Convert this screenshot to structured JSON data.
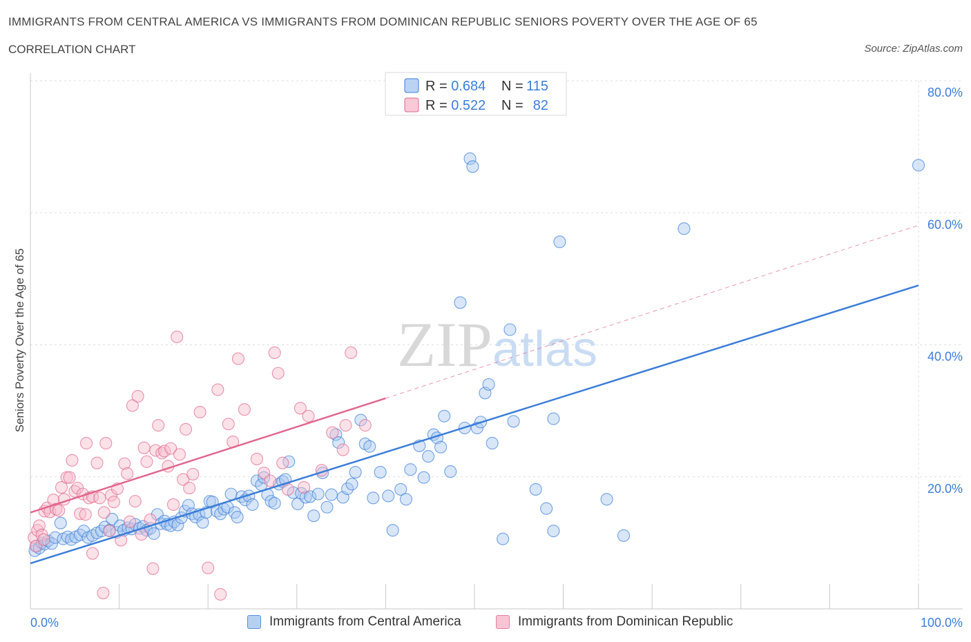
{
  "header": {
    "title": "IMMIGRANTS FROM CENTRAL AMERICA VS IMMIGRANTS FROM DOMINICAN REPUBLIC SENIORS POVERTY OVER THE AGE OF 65",
    "subtitle": "CORRELATION CHART",
    "source": "Source: ZipAtlas.com"
  },
  "watermark": {
    "zip": "ZIP",
    "atlas": "atlas"
  },
  "chart_data": {
    "type": "scatter",
    "xlabel": "",
    "ylabel": "Seniors Poverty Over the Age of 65",
    "xlim": [
      0,
      100
    ],
    "ylim": [
      0,
      80
    ],
    "x_tick_labels": [
      "0.0%",
      "100.0%"
    ],
    "y_ticks": [
      20,
      40,
      60,
      80
    ],
    "y_tick_labels": [
      "20.0%",
      "40.0%",
      "60.0%",
      "80.0%"
    ],
    "grid": true,
    "legend_position": "top-center",
    "stats": [
      {
        "r_label": "R = ",
        "r_value": "0.684",
        "n_label": "N = ",
        "n_value": "115"
      },
      {
        "r_label": "R = ",
        "r_value": "0.522",
        "n_label": "N = ",
        "n_value": "82"
      }
    ],
    "series": [
      {
        "name": "Immigrants from Central America",
        "color": "#3b7dd8",
        "fill": "#a9c8ef",
        "trend": {
          "x": [
            0,
            100
          ],
          "y": [
            6.9,
            49.0
          ],
          "dashed_extension": false
        },
        "points": [
          [
            0.5,
            8.8
          ],
          [
            0.7,
            9.5
          ],
          [
            1.0,
            9.2
          ],
          [
            1.3,
            10.0
          ],
          [
            1.6,
            9.8
          ],
          [
            2.0,
            10.3
          ],
          [
            2.4,
            9.9
          ],
          [
            2.8,
            10.8
          ],
          [
            3.4,
            13.0
          ],
          [
            3.7,
            10.6
          ],
          [
            4.2,
            10.9
          ],
          [
            4.6,
            10.5
          ],
          [
            5.1,
            10.9
          ],
          [
            5.6,
            11.2
          ],
          [
            6.0,
            11.8
          ],
          [
            6.5,
            10.8
          ],
          [
            7.0,
            11.1
          ],
          [
            7.5,
            11.5
          ],
          [
            8.0,
            11.8
          ],
          [
            8.4,
            12.4
          ],
          [
            8.9,
            11.9
          ],
          [
            9.2,
            13.6
          ],
          [
            9.7,
            11.6
          ],
          [
            10.1,
            12.6
          ],
          [
            10.5,
            11.9
          ],
          [
            11.0,
            12.3
          ],
          [
            11.4,
            12.1
          ],
          [
            11.8,
            12.8
          ],
          [
            12.3,
            12.2
          ],
          [
            12.7,
            12.5
          ],
          [
            13.1,
            11.9
          ],
          [
            13.5,
            12.2
          ],
          [
            13.9,
            11.4
          ],
          [
            14.3,
            14.3
          ],
          [
            14.7,
            12.9
          ],
          [
            15.1,
            13.3
          ],
          [
            15.4,
            12.8
          ],
          [
            15.8,
            12.6
          ],
          [
            16.2,
            13.2
          ],
          [
            16.6,
            12.7
          ],
          [
            17.0,
            13.8
          ],
          [
            17.4,
            14.8
          ],
          [
            17.8,
            15.7
          ],
          [
            18.2,
            14.4
          ],
          [
            18.6,
            13.9
          ],
          [
            19.0,
            14.3
          ],
          [
            19.4,
            13.1
          ],
          [
            19.8,
            14.6
          ],
          [
            20.2,
            16.3
          ],
          [
            20.5,
            16.2
          ],
          [
            21.0,
            14.8
          ],
          [
            21.4,
            14.4
          ],
          [
            21.8,
            15.1
          ],
          [
            22.2,
            15.4
          ],
          [
            22.6,
            17.4
          ],
          [
            23.0,
            14.6
          ],
          [
            23.3,
            13.9
          ],
          [
            23.8,
            17.0
          ],
          [
            24.2,
            16.5
          ],
          [
            24.6,
            17.1
          ],
          [
            25.0,
            15.8
          ],
          [
            25.5,
            19.4
          ],
          [
            26.0,
            18.8
          ],
          [
            26.3,
            19.9
          ],
          [
            26.7,
            17.3
          ],
          [
            27.1,
            16.3
          ],
          [
            27.5,
            16.0
          ],
          [
            28.0,
            18.9
          ],
          [
            28.4,
            19.3
          ],
          [
            28.7,
            19.6
          ],
          [
            29.1,
            22.3
          ],
          [
            29.6,
            17.6
          ],
          [
            30.1,
            15.9
          ],
          [
            30.5,
            17.5
          ],
          [
            31.0,
            16.9
          ],
          [
            31.5,
            17.0
          ],
          [
            31.9,
            14.1
          ],
          [
            32.4,
            17.4
          ],
          [
            32.9,
            20.6
          ],
          [
            33.4,
            15.4
          ],
          [
            33.9,
            17.3
          ],
          [
            34.4,
            26.4
          ],
          [
            34.7,
            25.2
          ],
          [
            35.2,
            16.9
          ],
          [
            35.7,
            18.2
          ],
          [
            36.2,
            18.9
          ],
          [
            36.6,
            20.7
          ],
          [
            37.2,
            28.6
          ],
          [
            37.7,
            25.0
          ],
          [
            38.2,
            24.6
          ],
          [
            38.6,
            16.8
          ],
          [
            39.4,
            20.7
          ],
          [
            40.3,
            17.1
          ],
          [
            40.8,
            11.9
          ],
          [
            41.7,
            18.1
          ],
          [
            42.3,
            16.6
          ],
          [
            42.8,
            21.1
          ],
          [
            43.8,
            24.7
          ],
          [
            44.3,
            19.9
          ],
          [
            44.8,
            23.1
          ],
          [
            45.4,
            26.4
          ],
          [
            45.8,
            25.9
          ],
          [
            46.2,
            24.5
          ],
          [
            46.6,
            29.2
          ],
          [
            47.3,
            20.8
          ],
          [
            48.4,
            46.4
          ],
          [
            48.9,
            27.4
          ],
          [
            49.5,
            68.2
          ],
          [
            49.8,
            67.0
          ],
          [
            50.3,
            27.4
          ],
          [
            50.7,
            28.3
          ],
          [
            51.2,
            32.7
          ],
          [
            51.6,
            34.0
          ],
          [
            52.0,
            25.1
          ],
          [
            53.2,
            10.6
          ],
          [
            54.0,
            42.3
          ],
          [
            54.4,
            28.4
          ],
          [
            56.9,
            18.1
          ],
          [
            58.1,
            15.2
          ],
          [
            58.9,
            11.8
          ],
          [
            58.9,
            28.8
          ],
          [
            59.6,
            55.6
          ],
          [
            64.9,
            16.6
          ],
          [
            66.8,
            11.1
          ],
          [
            73.6,
            57.6
          ],
          [
            100.0,
            67.2
          ]
        ]
      },
      {
        "name": "Immigrants from Dominican Republic",
        "color": "#e0678f",
        "fill": "#f6bccd",
        "trend": {
          "x": [
            0,
            40
          ],
          "y": [
            14.6,
            31.9
          ],
          "dashed_extension": true,
          "dashed_to": [
            100,
            58.1
          ]
        },
        "points": [
          [
            0.4,
            10.8
          ],
          [
            0.6,
            9.5
          ],
          [
            0.8,
            11.9
          ],
          [
            1.0,
            12.6
          ],
          [
            1.3,
            11.2
          ],
          [
            1.5,
            10.5
          ],
          [
            1.6,
            14.8
          ],
          [
            1.9,
            15.3
          ],
          [
            2.2,
            14.7
          ],
          [
            2.6,
            16.5
          ],
          [
            2.9,
            15.1
          ],
          [
            3.2,
            14.9
          ],
          [
            3.5,
            18.4
          ],
          [
            3.8,
            16.6
          ],
          [
            4.1,
            19.9
          ],
          [
            4.4,
            19.9
          ],
          [
            4.7,
            22.5
          ],
          [
            5.0,
            17.8
          ],
          [
            5.3,
            18.3
          ],
          [
            5.6,
            14.4
          ],
          [
            5.9,
            17.4
          ],
          [
            6.2,
            14.3
          ],
          [
            6.3,
            25.1
          ],
          [
            6.6,
            16.8
          ],
          [
            7.0,
            8.4
          ],
          [
            7.0,
            17.0
          ],
          [
            7.5,
            22.1
          ],
          [
            7.8,
            16.8
          ],
          [
            8.2,
            2.4
          ],
          [
            8.3,
            14.6
          ],
          [
            8.5,
            25.1
          ],
          [
            8.9,
            11.8
          ],
          [
            9.1,
            17.2
          ],
          [
            9.4,
            16.2
          ],
          [
            9.8,
            18.2
          ],
          [
            10.2,
            10.4
          ],
          [
            10.6,
            22.0
          ],
          [
            10.9,
            20.5
          ],
          [
            11.2,
            13.2
          ],
          [
            11.5,
            30.8
          ],
          [
            11.8,
            16.3
          ],
          [
            12.1,
            32.2
          ],
          [
            12.5,
            11.3
          ],
          [
            12.8,
            24.4
          ],
          [
            13.1,
            22.3
          ],
          [
            13.5,
            13.5
          ],
          [
            13.8,
            6.1
          ],
          [
            14.1,
            24.0
          ],
          [
            14.4,
            27.8
          ],
          [
            14.8,
            23.6
          ],
          [
            15.1,
            23.9
          ],
          [
            15.5,
            21.6
          ],
          [
            15.8,
            24.3
          ],
          [
            16.1,
            15.8
          ],
          [
            16.5,
            41.2
          ],
          [
            16.8,
            23.4
          ],
          [
            17.2,
            19.6
          ],
          [
            17.5,
            27.2
          ],
          [
            17.9,
            18.3
          ],
          [
            18.3,
            20.4
          ],
          [
            19.1,
            29.8
          ],
          [
            20.0,
            6.2
          ],
          [
            21.1,
            33.2
          ],
          [
            21.4,
            2.2
          ],
          [
            22.3,
            28.0
          ],
          [
            22.8,
            25.3
          ],
          [
            23.4,
            37.9
          ],
          [
            24.1,
            30.2
          ],
          [
            25.5,
            22.7
          ],
          [
            26.3,
            20.6
          ],
          [
            27.0,
            19.4
          ],
          [
            27.5,
            38.8
          ],
          [
            27.9,
            35.7
          ],
          [
            28.4,
            22.1
          ],
          [
            29.0,
            18.1
          ],
          [
            30.4,
            30.4
          ],
          [
            30.8,
            18.4
          ],
          [
            31.3,
            29.2
          ],
          [
            32.8,
            21.0
          ],
          [
            34.0,
            26.7
          ],
          [
            35.2,
            24.1
          ],
          [
            35.5,
            27.8
          ],
          [
            36.1,
            38.8
          ],
          [
            37.7,
            27.8
          ]
        ]
      }
    ]
  }
}
